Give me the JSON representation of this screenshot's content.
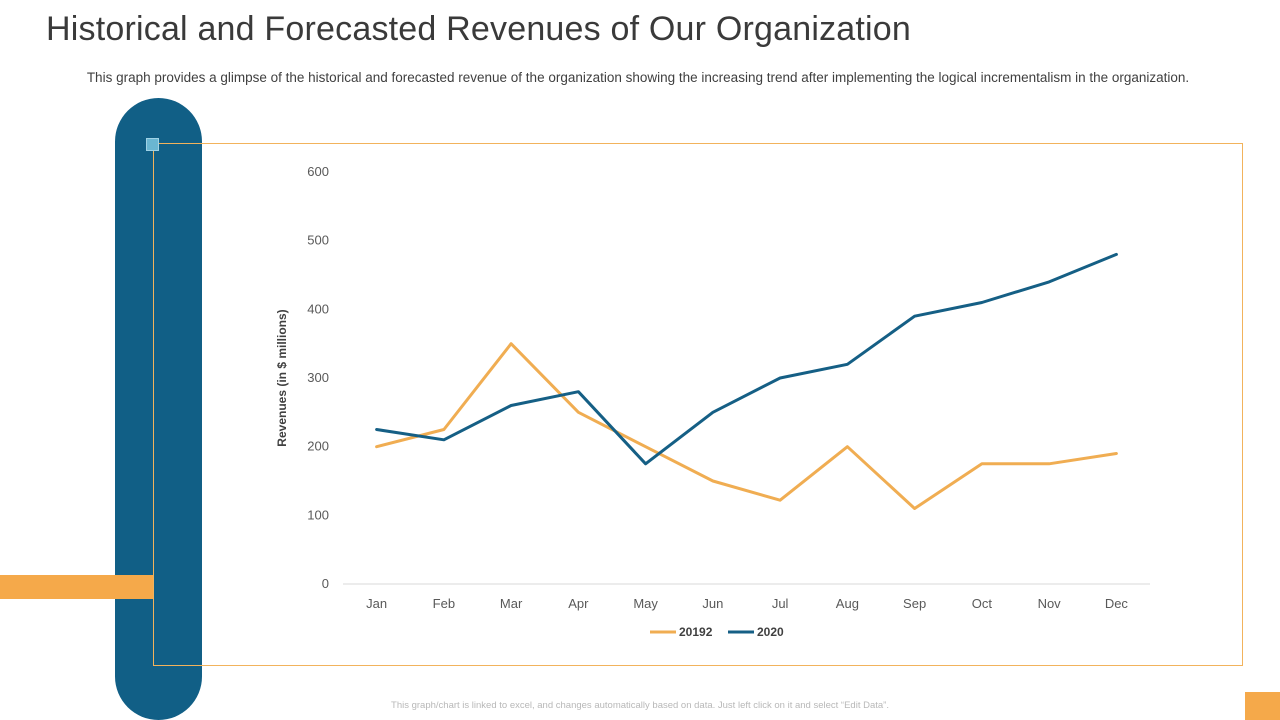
{
  "page": {
    "title": "Historical and Forecasted Revenues of Our Organization",
    "subtitle": "This graph provides a glimpse of the historical and forecasted revenue of the organization showing the increasing trend after implementing the logical incrementalism in the organization.",
    "footnote": "This graph/chart is linked to excel, and changes automatically based on data. Just left click on it and select “Edit Data”."
  },
  "colors": {
    "pill": "#115f86",
    "accent_orange": "#f5a94a",
    "series_2019": "#f0ad52",
    "series_2020": "#155f85",
    "axis": "#d9d9d9"
  },
  "chart_data": {
    "type": "line",
    "title": "",
    "xlabel": "",
    "ylabel": "Revenues (in $ millions)",
    "ylim": [
      0,
      600
    ],
    "yticks": [
      0,
      100,
      200,
      300,
      400,
      500,
      600
    ],
    "grid": false,
    "legend_position": "bottom",
    "categories": [
      "Jan",
      "Feb",
      "Mar",
      "Apr",
      "May",
      "Jun",
      "Jul",
      "Aug",
      "Sep",
      "Oct",
      "Nov",
      "Dec"
    ],
    "series": [
      {
        "name": "20192",
        "color": "#f0ad52",
        "values": [
          200,
          225,
          350,
          250,
          200,
          150,
          122,
          200,
          110,
          175,
          175,
          190
        ]
      },
      {
        "name": "2020",
        "color": "#155f85",
        "values": [
          225,
          210,
          260,
          280,
          175,
          250,
          300,
          320,
          390,
          410,
          440,
          480
        ]
      }
    ]
  }
}
